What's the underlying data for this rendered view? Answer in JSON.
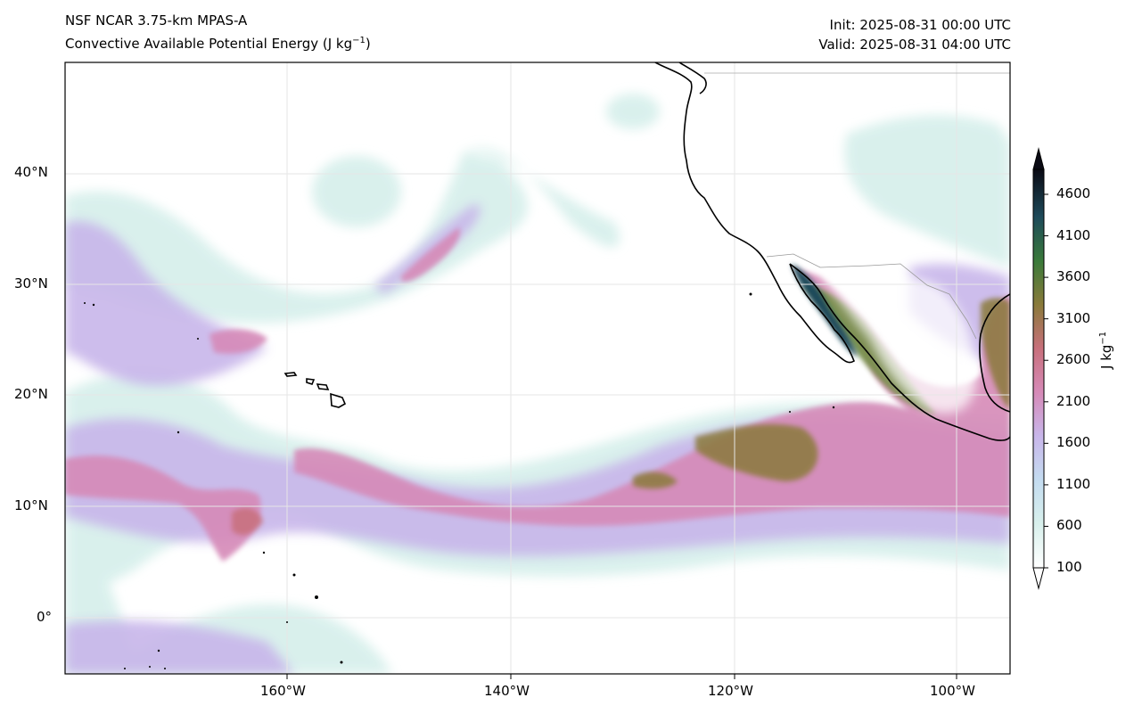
{
  "header": {
    "model": "NSF NCAR 3.75-km MPAS-A",
    "field_prefix": "Convective Available Potential Energy (J kg",
    "field_exp": "−1",
    "field_suffix": ")",
    "init": "Init: 2025-08-31 00:00 UTC",
    "valid": "Valid: 2025-08-31 04:00 UTC"
  },
  "axes": {
    "lon_labels": [
      "160°W",
      "140°W",
      "120°W",
      "100°W"
    ],
    "lat_labels": [
      "40°N",
      "30°N",
      "20°N",
      "10°N",
      "0°"
    ]
  },
  "colorbar": {
    "label_prefix": "J kg",
    "label_exp": "−1",
    "ticks": [
      "4600",
      "4100",
      "3600",
      "3100",
      "2600",
      "2100",
      "1600",
      "1100",
      "600",
      "100"
    ],
    "stops": [
      "#ffffff",
      "#d8f0ec",
      "#c4dcf0",
      "#c8b6ea",
      "#d68ab8",
      "#c8707c",
      "#8a7a3a",
      "#3a7a3a",
      "#1e4a5a",
      "#0a0a14"
    ]
  },
  "colors": {
    "land_outline": "#000000",
    "grid": "#dddddd",
    "low_cape": "#d8f0ec",
    "mid_cape": "#c8b6ea",
    "high_cape": "#d68ab8",
    "very_high_cape": "#8a7a3a",
    "extreme_cape": "#1e4a5a"
  }
}
